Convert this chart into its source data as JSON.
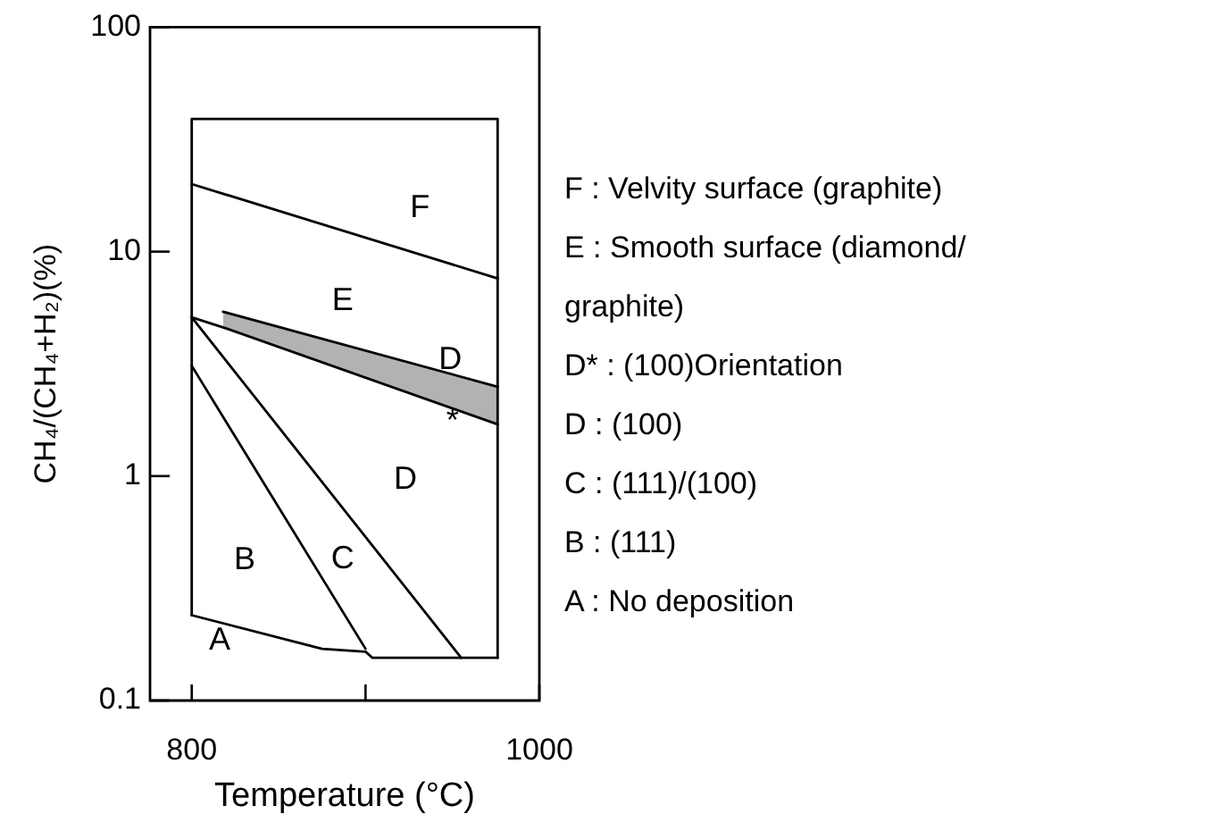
{
  "chart_data": {
    "type": "line",
    "xlabel": "Temperature (°C)",
    "ylabel": "CH₄/(CH₄+H₂)(%)",
    "log": "y",
    "xlim": [
      776,
      1000
    ],
    "xticks": [
      800,
      {
        "value": 900,
        "label": null
      },
      1000
    ],
    "ylim": [
      0.1,
      100
    ],
    "yticks": [
      0.1,
      1,
      10,
      100
    ],
    "series": [
      {
        "color": "#000000",
        "x": [
          800,
          800,
          976,
          976
        ],
        "values": [
          0.24,
          39,
          39,
          0.155
        ]
      },
      {
        "color": "#000000",
        "x": [
          800,
          875,
          900,
          904,
          976
        ],
        "values": [
          0.24,
          0.17,
          0.165,
          0.155,
          0.155
        ]
      },
      {
        "color": "#000000",
        "x": [
          800,
          976
        ],
        "values": [
          20,
          7.6
        ]
      },
      {
        "color": "#000000",
        "x": [
          818,
          976
        ],
        "values": [
          5.4,
          2.5
        ]
      },
      {
        "color": "#000000",
        "x": [
          800,
          818,
          976
        ],
        "values": [
          5.1,
          4.6,
          1.7
        ],
        "lower": [
          null,
          4.6,
          1.7
        ],
        "upper": [
          null,
          5.4,
          2.5
        ]
      },
      {
        "color": "#000000",
        "x": [
          800,
          900
        ],
        "values": [
          3.1,
          0.17
        ]
      },
      {
        "color": "#000000",
        "x": [
          800,
          955
        ],
        "values": [
          5.1,
          0.155
        ]
      }
    ],
    "annotations": [
      "F",
      "E",
      "D",
      "D",
      "C",
      "B",
      "A",
      {
        "text": "*",
        "x": 950,
        "y": 1.9
      },
      "F : Velvity surface (graphite)",
      "E : Smooth surface (diamond/graphite)",
      "D* : (100)Orientation",
      "D : (100)",
      "C : (111)/(100)",
      "B : (111)",
      "A : No deposition"
    ]
  }
}
